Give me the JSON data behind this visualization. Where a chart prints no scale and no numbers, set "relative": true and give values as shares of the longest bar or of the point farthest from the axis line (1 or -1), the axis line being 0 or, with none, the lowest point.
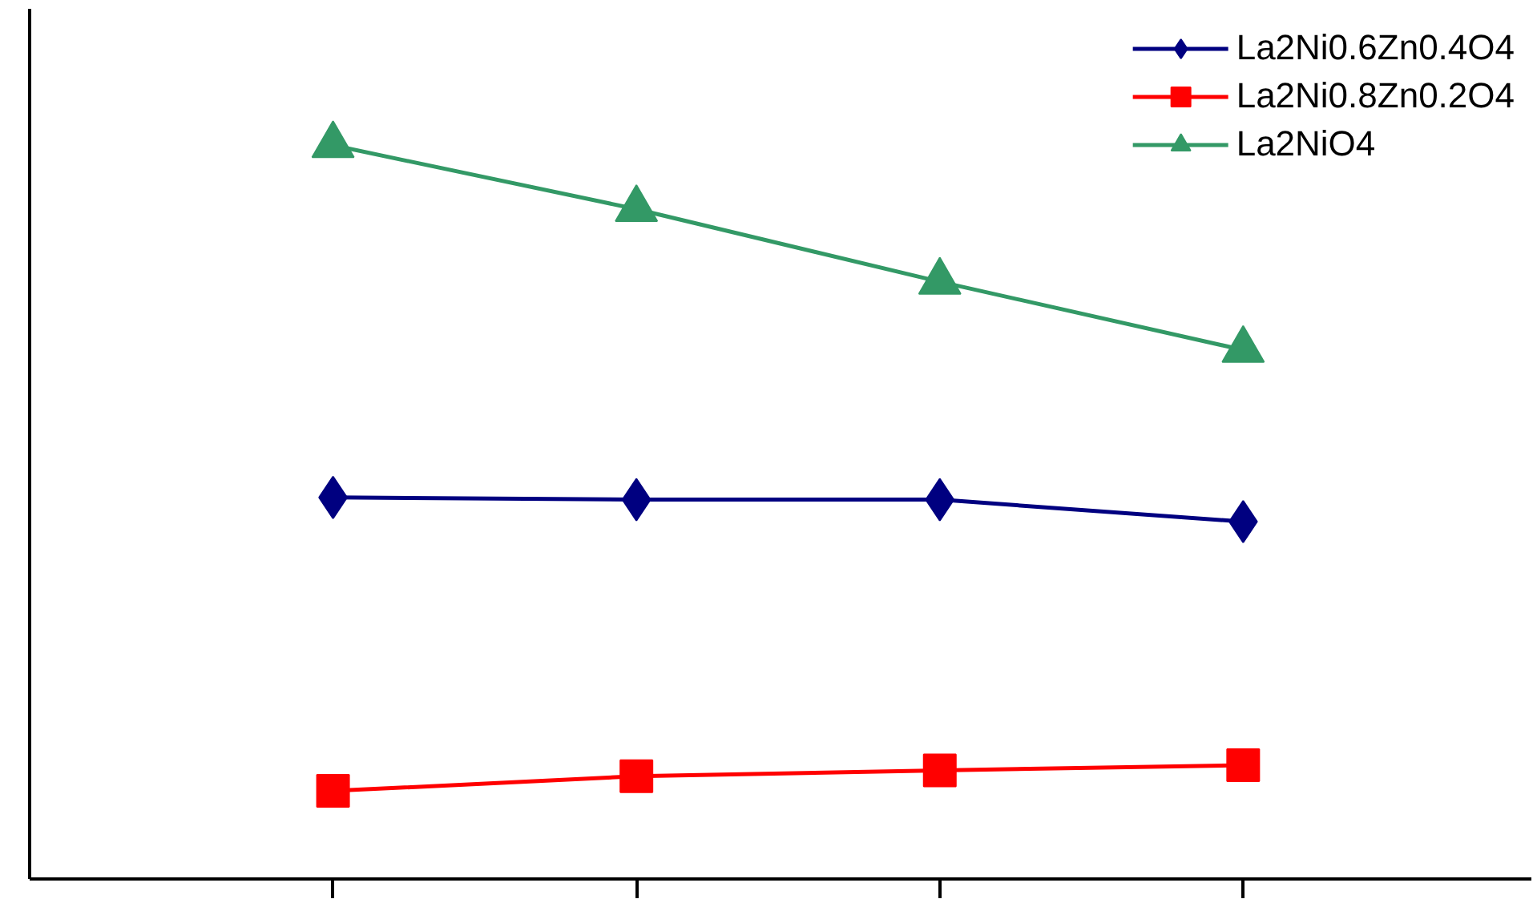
{
  "chart_data": {
    "type": "line",
    "relative": true,
    "categories": [
      null,
      null,
      null,
      null
    ],
    "series": [
      {
        "name": "La2Ni0.6Zn0.4O4",
        "color": "#000080",
        "marker": "diamond",
        "values": [
          0.52,
          0.517,
          0.517,
          0.487
        ]
      },
      {
        "name": "La2Ni0.8Zn0.2O4",
        "color": "#ff0000",
        "marker": "square",
        "values": [
          0.12,
          0.14,
          0.148,
          0.155
        ]
      },
      {
        "name": "La2NiO4",
        "color": "#339966",
        "marker": "triangle",
        "values": [
          1,
          0.913,
          0.814,
          0.721
        ]
      }
    ],
    "legend": "top right",
    "grid": false
  }
}
